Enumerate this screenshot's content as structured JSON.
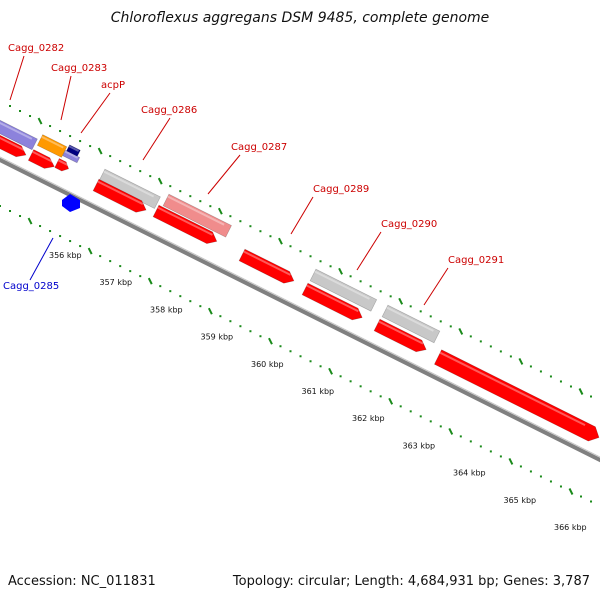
{
  "title": "Chloroflexus aggregans DSM 9485, complete genome",
  "footer": {
    "accession": "Accession: NC_011831",
    "summary": "Topology: circular; Length: 4,684,931 bp; Genes: 3,787"
  },
  "colors": {
    "cds_forward": "#ff0000",
    "cds_reverse": "#0000ff",
    "label_red": "#cc0000",
    "label_blue": "#0000cc",
    "tick": "#1a8a1a",
    "backbone": "#808080",
    "grey_feature": "#c8c8c8",
    "pink_feature": "#f08c8c",
    "purple_feature": "#8c82dc",
    "orange_feature": "#ff9900",
    "navy_feature": "#000080"
  },
  "gene_labels": [
    {
      "text": "Cagg_0282",
      "color": "label_red"
    },
    {
      "text": "Cagg_0283",
      "color": "label_red"
    },
    {
      "text": "acpP",
      "color": "label_red"
    },
    {
      "text": "Cagg_0286",
      "color": "label_red"
    },
    {
      "text": "Cagg_0287",
      "color": "label_red"
    },
    {
      "text": "Cagg_0289",
      "color": "label_red"
    },
    {
      "text": "Cagg_0290",
      "color": "label_red"
    },
    {
      "text": "Cagg_0291",
      "color": "label_red"
    },
    {
      "text": "Cagg_0285",
      "color": "label_blue"
    }
  ],
  "kbp_labels": [
    "356 kbp",
    "357 kbp",
    "358 kbp",
    "359 kbp",
    "360 kbp",
    "361 kbp",
    "362 kbp",
    "363 kbp",
    "364 kbp",
    "365 kbp",
    "366 kbp"
  ]
}
